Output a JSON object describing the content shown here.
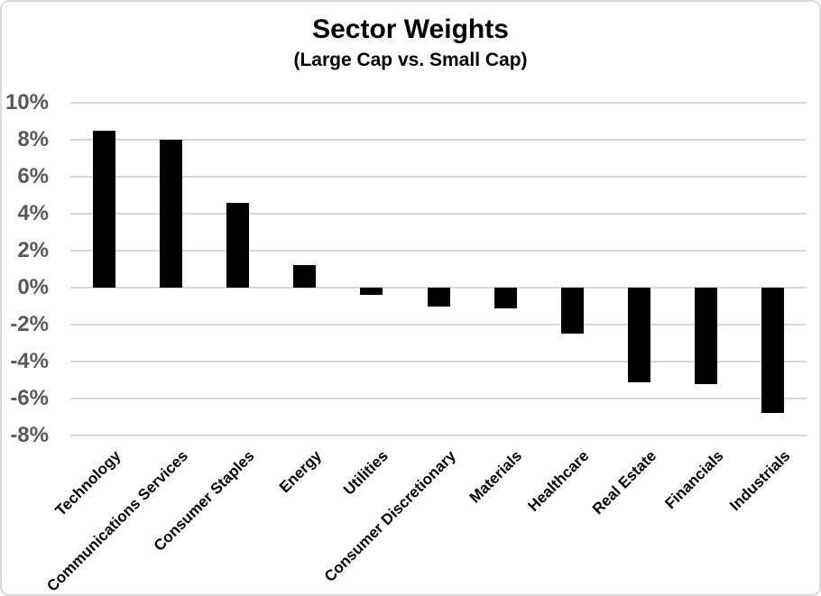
{
  "chart_data": {
    "type": "bar",
    "title": "Sector Weights",
    "subtitle": "(Large Cap vs. Small Cap)",
    "categories": [
      "Technology",
      "Communications Services",
      "Consumer Staples",
      "Energy",
      "Utilities",
      "Consumer Discretionary",
      "Materials",
      "Healthcare",
      "Real Estate",
      "Financials",
      "Industrials"
    ],
    "values": [
      8.5,
      8.0,
      4.6,
      1.2,
      -0.4,
      -1.0,
      -1.1,
      -2.5,
      -5.1,
      -5.2,
      -6.8
    ],
    "xlabel": "",
    "ylabel": "",
    "ylim": [
      -8,
      10
    ],
    "y_ticks": [
      10,
      8,
      6,
      4,
      2,
      0,
      -2,
      -4,
      -6,
      -8
    ],
    "y_tick_suffix": "%",
    "grid": "horizontal",
    "legend": "none",
    "bar_color": "#000000",
    "gridline_color": "#d9d9d9",
    "y_tick_label_color": "#595959",
    "category_label_color": "#000000",
    "background_color": "#ffffff",
    "border_color": "#d9d9d9"
  }
}
